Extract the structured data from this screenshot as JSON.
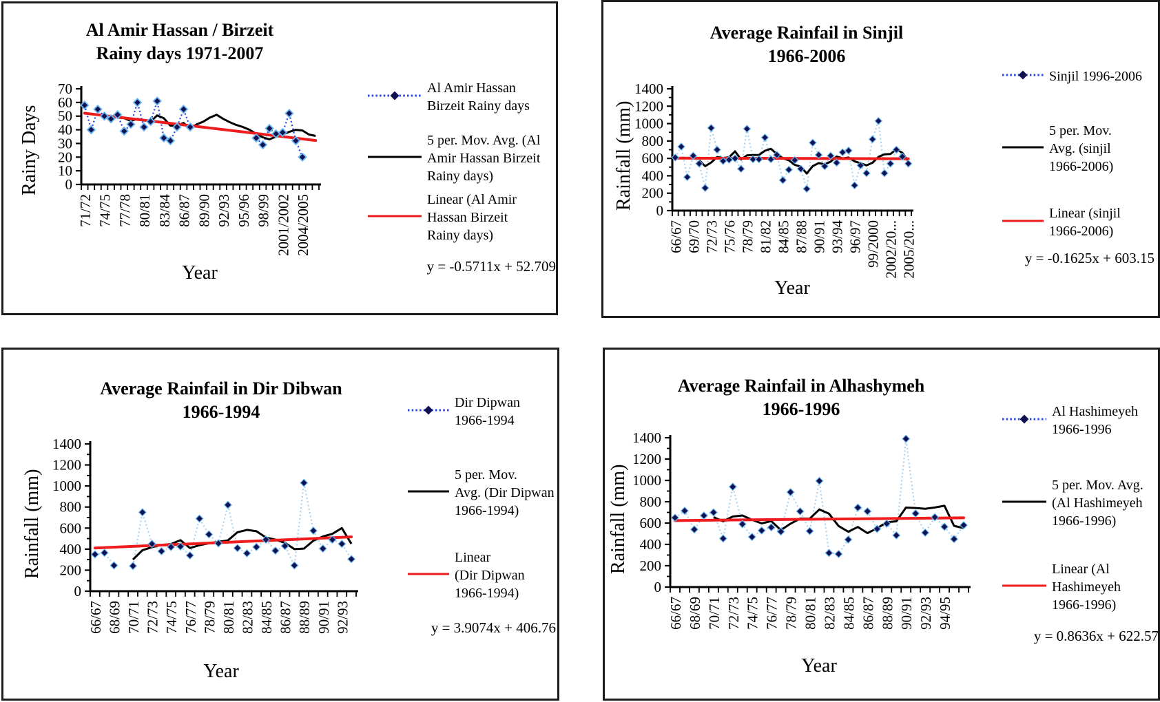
{
  "colors": {
    "background": "#ffffff",
    "panel_border": "#1c1c1c",
    "series_dotted_bright": "#2643e6",
    "series_dotted_pale": "#a9d3f0",
    "marker_navy": "#10124f",
    "marker_halo": "#6cb5f2",
    "moving_avg_black": "#000000",
    "trend_red": "#ee1c1c"
  },
  "chart_data": [
    {
      "id": "al-amir-hassan-birzeit",
      "type": "line",
      "title_line1": "Al Amir Hassan / Birzeit",
      "title_line2": "Rainy days 1971-2007",
      "ylabel": "Rainy Days",
      "xlabel": "Year",
      "ylim": [
        0,
        70
      ],
      "ytick_step": 10,
      "grid": false,
      "legend_position": "right",
      "categories": [
        "71/72",
        "72/73",
        "73/74",
        "74/75",
        "75/76",
        "76/77",
        "77/78",
        "78/79",
        "79/80",
        "80/81",
        "81/82",
        "82/83",
        "83/84",
        "84/85",
        "85/86",
        "86/87",
        "87/88",
        "88/89",
        "89/90",
        "90/91",
        "91/92",
        "92/93",
        "93/94",
        "94/95",
        "95/96",
        "96/97",
        "97/98",
        "98/99",
        "99/2000",
        "2000/2001",
        "2001/2002",
        "2002/2003",
        "2003/2004",
        "2004/2005",
        "2005/2006",
        "2006/2007"
      ],
      "xticks": [
        {
          "i": 0,
          "label": "71/72"
        },
        {
          "i": 3,
          "label": "74/75"
        },
        {
          "i": 6,
          "label": "77/78"
        },
        {
          "i": 9,
          "label": "80/81"
        },
        {
          "i": 12,
          "label": "83/84"
        },
        {
          "i": 15,
          "label": "86/87"
        },
        {
          "i": 18,
          "label": "89/90"
        },
        {
          "i": 21,
          "label": "92/93"
        },
        {
          "i": 24,
          "label": "95/96"
        },
        {
          "i": 27,
          "label": "98/99"
        },
        {
          "i": 30,
          "label": "2001/2002"
        },
        {
          "i": 33,
          "label": "2004/2005"
        }
      ],
      "series": [
        {
          "name": "Al Amir Hassan Birzeit Rainy days",
          "style": "dotted-diamond",
          "values": [
            58,
            40,
            55,
            50,
            48,
            51,
            39,
            44,
            60,
            42,
            46,
            61,
            34,
            32,
            42,
            55,
            42,
            null,
            null,
            null,
            null,
            null,
            null,
            null,
            null,
            null,
            34,
            29,
            41,
            37,
            38,
            52,
            32,
            20,
            null,
            null
          ]
        },
        {
          "name": "5 per. Mov. Avg. (Al Amir Hassan Birzeit Rainy days)",
          "style": "solid-black",
          "values": [
            null,
            null,
            null,
            null,
            50,
            49,
            48.5,
            46.5,
            48,
            47,
            46,
            50.5,
            48.5,
            43,
            43,
            45,
            41,
            44,
            46,
            49,
            51,
            48,
            45.5,
            43.5,
            42,
            40,
            37,
            34.5,
            33,
            35,
            36.5,
            38.5,
            40,
            39.5,
            36.5,
            35.5
          ]
        },
        {
          "name": "Linear (Al Amir Hassan Birzeit Rainy days)",
          "style": "solid-red",
          "slope": -0.5711,
          "intercept": 52.709
        }
      ],
      "equation": "y = -0.5711x + 52.709",
      "legend": [
        {
          "marker": "dotted-diamond",
          "lines": [
            "Al Amir Hassan",
            "Birzeit Rainy days"
          ]
        },
        {
          "marker": "black-line",
          "lines": [
            "5 per. Mov. Avg. (Al",
            "Amir Hassan Birzeit",
            "Rainy days)"
          ]
        },
        {
          "marker": "red-line",
          "lines": [
            "Linear (Al Amir",
            "Hassan Birzeit",
            "Rainy days)"
          ]
        }
      ]
    },
    {
      "id": "sinjil",
      "type": "line",
      "title_line1": "Average Rainfail in Sinjil",
      "title_line2": "1966-2006",
      "ylabel": "Rainfall (mm)",
      "xlabel": "Year",
      "ylim": [
        0,
        1400
      ],
      "ytick_step": 200,
      "yminor_step": 100,
      "grid": false,
      "legend_position": "right",
      "categories": [
        "66/67",
        "67/68",
        "68/69",
        "69/70",
        "70/71",
        "71/72",
        "72/73",
        "73/74",
        "74/75",
        "75/76",
        "76/77",
        "77/78",
        "78/79",
        "79/80",
        "80/81",
        "81/82",
        "82/83",
        "83/84",
        "84/85",
        "85/86",
        "86/87",
        "87/88",
        "88/89",
        "89/90",
        "90/91",
        "91/92",
        "92/93",
        "93/94",
        "94/95",
        "95/96",
        "96/97",
        "97/98",
        "98/99",
        "99/2000",
        "2000/2001",
        "2001/2002",
        "2002/2003",
        "2003/2004",
        "2004/2005",
        "2005/2006"
      ],
      "xticks": [
        {
          "i": 0,
          "label": "66/67"
        },
        {
          "i": 3,
          "label": "69/70"
        },
        {
          "i": 6,
          "label": "72/73"
        },
        {
          "i": 9,
          "label": "75/76"
        },
        {
          "i": 12,
          "label": "78/79"
        },
        {
          "i": 15,
          "label": "81/82"
        },
        {
          "i": 18,
          "label": "84/85"
        },
        {
          "i": 21,
          "label": "87/88"
        },
        {
          "i": 24,
          "label": "90/91"
        },
        {
          "i": 27,
          "label": "93/94"
        },
        {
          "i": 30,
          "label": "96/97"
        },
        {
          "i": 33,
          "label": "99/2000"
        },
        {
          "i": 36,
          "label": "2002/20..."
        },
        {
          "i": 39,
          "label": "2005/20..."
        }
      ],
      "series": [
        {
          "name": "Sinjil 1996-2006",
          "style": "dotted-diamond",
          "values": [
            610,
            735,
            385,
            630,
            540,
            260,
            950,
            700,
            570,
            585,
            600,
            480,
            940,
            590,
            590,
            840,
            590,
            640,
            350,
            470,
            580,
            480,
            250,
            780,
            640,
            510,
            630,
            550,
            670,
            690,
            290,
            520,
            430,
            820,
            1030,
            430,
            540,
            700,
            620,
            540
          ]
        },
        {
          "name": "5 per. Mov. Avg. (sinjil 1966-2006)",
          "style": "solid-black",
          "values": [
            null,
            null,
            null,
            null,
            580,
            510,
            553,
            616,
            604,
            613,
            681,
            587,
            635,
            639,
            640,
            688,
            710,
            650,
            602,
            578,
            526,
            504,
            426,
            512,
            546,
            532,
            562,
            622,
            600,
            610,
            566,
            544,
            520,
            550,
            618,
            646,
            650,
            704,
            664,
            566
          ]
        },
        {
          "name": "Linear (sinjil 1966-2006)",
          "style": "solid-red",
          "slope": -0.1625,
          "intercept": 603.15
        }
      ],
      "equation": "y = -0.1625x + 603.15",
      "legend": [
        {
          "marker": "dotted-diamond",
          "lines": [
            "Sinjil 1996-2006"
          ]
        },
        {
          "marker": "black-line",
          "lines": [
            "5 per. Mov.",
            "Avg. (sinjil",
            "1966-2006)"
          ]
        },
        {
          "marker": "red-line",
          "lines": [
            "Linear (sinjil",
            "1966-2006)"
          ]
        }
      ]
    },
    {
      "id": "dir-dibwan",
      "type": "line",
      "title_line1": "Average Rainfail in Dir Dibwan",
      "title_line2": "1966-1994",
      "ylabel": "Rainfall (mm)",
      "xlabel": "Year",
      "ylim": [
        0,
        1400
      ],
      "ytick_step": 200,
      "yminor_step": 100,
      "grid": false,
      "legend_position": "right",
      "categories": [
        "66/67",
        "67/68",
        "68/69",
        "69/70",
        "70/71",
        "71/72",
        "72/73",
        "73/74",
        "74/75",
        "75/76",
        "76/77",
        "77/78",
        "78/79",
        "79/80",
        "80/81",
        "81/82",
        "82/83",
        "83/84",
        "84/85",
        "85/86",
        "86/87",
        "87/88",
        "88/89",
        "89/90",
        "90/91",
        "91/92",
        "92/93",
        "93/94"
      ],
      "xticks": [
        {
          "i": 0,
          "label": "66/67"
        },
        {
          "i": 2,
          "label": "68/69"
        },
        {
          "i": 4,
          "label": "70/71"
        },
        {
          "i": 6,
          "label": "72/73"
        },
        {
          "i": 8,
          "label": "74/75"
        },
        {
          "i": 10,
          "label": "76/77"
        },
        {
          "i": 12,
          "label": "78/79"
        },
        {
          "i": 14,
          "label": "80/81"
        },
        {
          "i": 16,
          "label": "82/83"
        },
        {
          "i": 18,
          "label": "84/85"
        },
        {
          "i": 20,
          "label": "86/87"
        },
        {
          "i": 22,
          "label": "88/89"
        },
        {
          "i": 24,
          "label": "90/91"
        },
        {
          "i": 26,
          "label": "92/93"
        }
      ],
      "series": [
        {
          "name": "Dir Dipwan 1966-1994",
          "style": "dotted-diamond",
          "values": [
            350,
            365,
            245,
            null,
            240,
            750,
            450,
            380,
            420,
            425,
            340,
            690,
            540,
            455,
            820,
            410,
            360,
            420,
            490,
            385,
            430,
            245,
            1030,
            575,
            405,
            490,
            450,
            305
          ]
        },
        {
          "name": "5 per. Mov. Avg. (Dir Dipwan 1966-1994)",
          "style": "solid-black",
          "values": [
            null,
            null,
            null,
            null,
            300,
            390,
            418,
            440,
            448,
            485,
            410,
            437,
            455,
            470,
            483,
            560,
            583,
            570,
            510,
            490,
            460,
            400,
            405,
            480,
            520,
            545,
            600,
            450
          ]
        },
        {
          "name": "Linear (Dir Dipwan 1966-1994)",
          "style": "solid-red",
          "slope": 3.9074,
          "intercept": 406.76
        }
      ],
      "equation": "y = 3.9074x + 406.76",
      "legend": [
        {
          "marker": "dotted-diamond",
          "lines": [
            "Dir Dipwan",
            "1966-1994"
          ]
        },
        {
          "marker": "black-line",
          "lines": [
            "5 per. Mov.",
            "Avg. (Dir Dipwan",
            "1966-1994)"
          ]
        },
        {
          "marker": "red-line",
          "lines": [
            "Linear",
            "(Dir Dipwan",
            "1966-1994)"
          ]
        }
      ]
    },
    {
      "id": "alhashymeh",
      "type": "line",
      "title_line1": "Average Rainfail in Alhashymeh",
      "title_line2": "1966-1996",
      "ylabel": "Rainfall (mm)",
      "xlabel": "Year",
      "ylim": [
        0,
        1400
      ],
      "ytick_step": 200,
      "yminor_step": 100,
      "grid": false,
      "legend_position": "right",
      "categories": [
        "66/67",
        "67/68",
        "68/69",
        "69/70",
        "70/71",
        "71/72",
        "72/73",
        "73/74",
        "74/75",
        "75/76",
        "76/77",
        "77/78",
        "78/79",
        "79/80",
        "80/81",
        "81/82",
        "82/83",
        "83/84",
        "84/85",
        "85/86",
        "86/87",
        "87/88",
        "88/89",
        "89/90",
        "90/91",
        "91/92",
        "92/93",
        "93/94",
        "94/95",
        "95/96",
        "96/97"
      ],
      "xticks": [
        {
          "i": 0,
          "label": "66/67"
        },
        {
          "i": 2,
          "label": "68/69"
        },
        {
          "i": 4,
          "label": "70/71"
        },
        {
          "i": 6,
          "label": "72/73"
        },
        {
          "i": 8,
          "label": "74/75"
        },
        {
          "i": 10,
          "label": "76/77"
        },
        {
          "i": 12,
          "label": "78/79"
        },
        {
          "i": 14,
          "label": "80/81"
        },
        {
          "i": 16,
          "label": "82/83"
        },
        {
          "i": 18,
          "label": "84/85"
        },
        {
          "i": 20,
          "label": "86/87"
        },
        {
          "i": 22,
          "label": "88/89"
        },
        {
          "i": 24,
          "label": "90/91"
        },
        {
          "i": 26,
          "label": "92/93"
        },
        {
          "i": 28,
          "label": "94/95"
        }
      ],
      "series": [
        {
          "name": "Al Hashimeyeh 1966-1996",
          "style": "dotted-diamond",
          "values": [
            650,
            715,
            540,
            670,
            700,
            455,
            940,
            590,
            470,
            530,
            560,
            520,
            890,
            710,
            525,
            995,
            320,
            310,
            445,
            745,
            710,
            545,
            595,
            485,
            1390,
            690,
            510,
            655,
            565,
            450,
            580
          ]
        },
        {
          "name": "5 per. Mov. Avg. (Al Hashimeyeh 1966-1996)",
          "style": "solid-black",
          "values": [
            null,
            null,
            null,
            null,
            655,
            616,
            661,
            671,
            631,
            597,
            618,
            534,
            594,
            642,
            641,
            728,
            688,
            572,
            519,
            563,
            506,
            551,
            608,
            616,
            745,
            741,
            734,
            746,
            762,
            574,
            552
          ]
        },
        {
          "name": "Linear (Al Hashimeyeh 1966-1996)",
          "style": "solid-red",
          "slope": 0.8636,
          "intercept": 622.57
        }
      ],
      "equation": "y = 0.8636x + 622.57",
      "legend": [
        {
          "marker": "dotted-diamond",
          "lines": [
            "Al Hashimeyeh",
            "1966-1996"
          ]
        },
        {
          "marker": "black-line",
          "lines": [
            "5 per. Mov. Avg.",
            "(Al Hashimeyeh",
            "1966-1996)"
          ]
        },
        {
          "marker": "red-line",
          "lines": [
            "Linear (Al",
            "Hashimeyeh",
            "1966-1996)"
          ]
        }
      ]
    }
  ]
}
